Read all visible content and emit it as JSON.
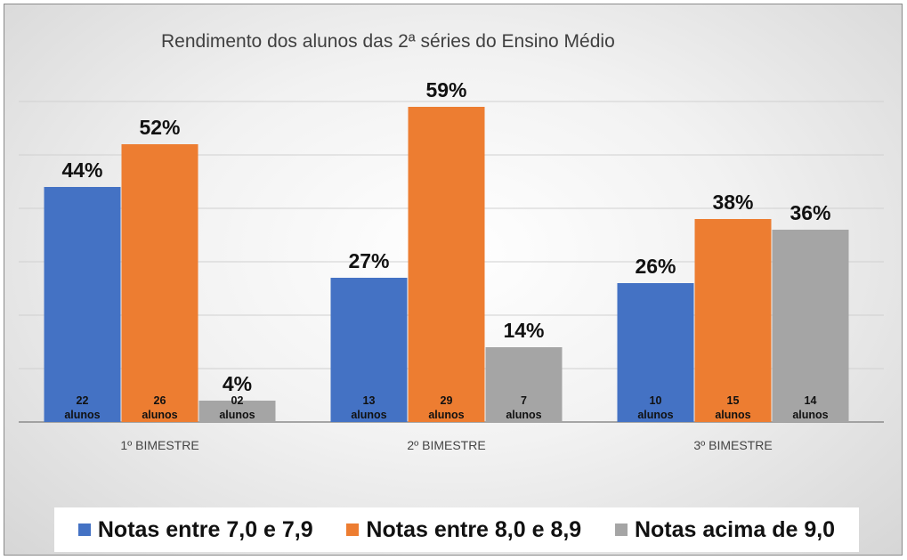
{
  "chart_data": {
    "type": "bar",
    "title": "Rendimento dos alunos das 2ª séries do Ensino Médio",
    "categories": [
      "1º BIMESTRE",
      "2º BIMESTRE",
      "3º BIMESTRE"
    ],
    "series": [
      {
        "name": "Notas entre 7,0 e 7,9",
        "color": "#4472C4",
        "values": [
          44,
          27,
          26
        ],
        "value_labels": [
          "44%",
          "27%",
          "26%"
        ],
        "count_labels": [
          [
            "22",
            "alunos"
          ],
          [
            "13",
            "alunos"
          ],
          [
            "10",
            "alunos"
          ]
        ]
      },
      {
        "name": "Notas entre 8,0 e 8,9",
        "color": "#ED7D31",
        "values": [
          52,
          59,
          38
        ],
        "value_labels": [
          "52%",
          "59%",
          "38%"
        ],
        "count_labels": [
          [
            "26",
            "alunos"
          ],
          [
            "29",
            "alunos"
          ],
          [
            "15",
            "alunos"
          ]
        ]
      },
      {
        "name": "Notas acima de 9,0",
        "color": "#A5A5A5",
        "values": [
          4,
          14,
          36
        ],
        "value_labels": [
          "4%",
          "14%",
          "36%"
        ],
        "count_labels": [
          [
            "02",
            "alunos"
          ],
          [
            "7",
            "alunos"
          ],
          [
            "14",
            "alunos"
          ]
        ]
      }
    ],
    "ylim": [
      0,
      60
    ],
    "grid": true,
    "legend_position": "bottom"
  }
}
